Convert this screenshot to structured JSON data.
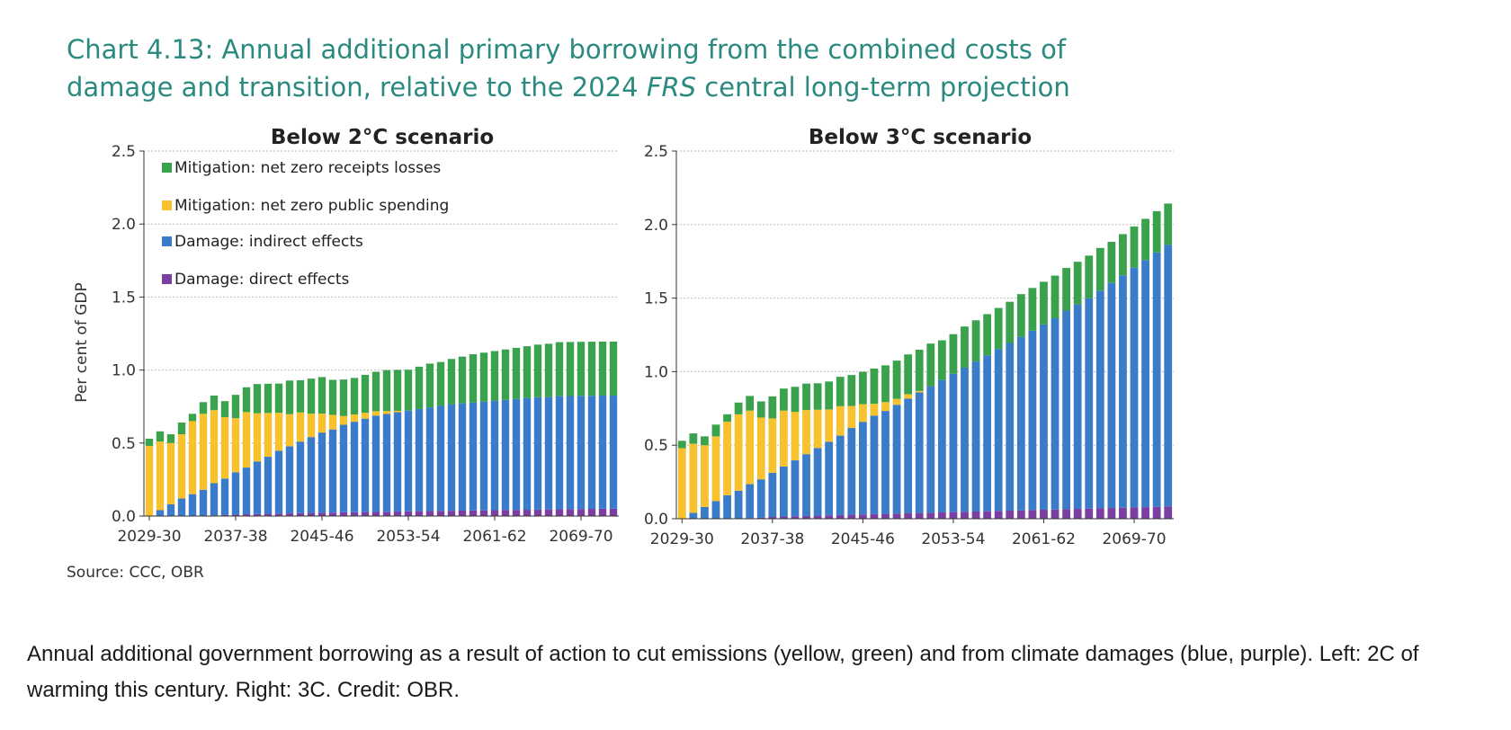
{
  "title": {
    "line1": "Chart 4.13: Annual additional primary borrowing from the combined costs of",
    "line2_before": "damage and transition, relative to the 2024 ",
    "line2_italic": "FRS",
    "line2_after": " central long-term projection"
  },
  "source": "Source: CCC, OBR",
  "caption": "Annual additional government borrowing as a result of action to cut emissions (yellow, green) and from climate damages (blue, purple). Left: 2C of warming this century. Right: 3C. Credit: OBR.",
  "colors": {
    "direct": "#7a3fa0",
    "indirect": "#3a7cc9",
    "spending": "#f7c12f",
    "receipts": "#3aa14c",
    "grid": "#bdbdbd",
    "axis": "#333333"
  },
  "chart_data": [
    {
      "type": "bar",
      "stacked": true,
      "title": "Below 2°C scenario",
      "ylabel": "Per cent of GDP",
      "ylim": [
        0,
        2.5
      ],
      "yticks": [
        "0.0",
        "0.5",
        "1.0",
        "1.5",
        "2.0",
        "2.5"
      ],
      "xticks": [
        "2029-30",
        "2037-38",
        "2045-46",
        "2053-54",
        "2061-62",
        "2069-70"
      ],
      "grid": true,
      "legend_position": "top-left",
      "categories": [
        "2029-30",
        "2030-31",
        "2031-32",
        "2032-33",
        "2033-34",
        "2034-35",
        "2035-36",
        "2036-37",
        "2037-38",
        "2038-39",
        "2039-40",
        "2040-41",
        "2041-42",
        "2042-43",
        "2043-44",
        "2044-45",
        "2045-46",
        "2046-47",
        "2047-48",
        "2048-49",
        "2049-50",
        "2050-51",
        "2051-52",
        "2052-53",
        "2053-54",
        "2054-55",
        "2055-56",
        "2056-57",
        "2057-58",
        "2058-59",
        "2059-60",
        "2060-61",
        "2061-62",
        "2062-63",
        "2063-64",
        "2064-65",
        "2065-66",
        "2066-67",
        "2067-68",
        "2068-69",
        "2069-70",
        "2070-71",
        "2071-72",
        "2072-73"
      ],
      "series": [
        {
          "name": "Damage: direct effects",
          "key": "direct",
          "values": [
            0.0,
            0.0,
            0.0,
            0.0,
            0.0,
            0.0,
            0.005,
            0.007,
            0.01,
            0.012,
            0.014,
            0.016,
            0.017,
            0.018,
            0.02,
            0.021,
            0.022,
            0.023,
            0.025,
            0.026,
            0.027,
            0.028,
            0.029,
            0.031,
            0.032,
            0.033,
            0.034,
            0.035,
            0.036,
            0.037,
            0.038,
            0.039,
            0.04,
            0.041,
            0.042,
            0.043,
            0.044,
            0.045,
            0.046,
            0.047,
            0.048,
            0.049,
            0.05,
            0.05
          ]
        },
        {
          "name": "Damage: indirect effects",
          "key": "indirect",
          "values": [
            0.0,
            0.04,
            0.08,
            0.12,
            0.15,
            0.18,
            0.22,
            0.25,
            0.29,
            0.32,
            0.36,
            0.39,
            0.43,
            0.46,
            0.49,
            0.52,
            0.55,
            0.57,
            0.6,
            0.62,
            0.64,
            0.66,
            0.67,
            0.68,
            0.69,
            0.7,
            0.71,
            0.72,
            0.73,
            0.735,
            0.74,
            0.745,
            0.75,
            0.755,
            0.76,
            0.765,
            0.77,
            0.77,
            0.775,
            0.775,
            0.775,
            0.775,
            0.775,
            0.775
          ]
        },
        {
          "name": "Mitigation: net zero public spending",
          "key": "spending",
          "values": [
            0.48,
            0.47,
            0.42,
            0.44,
            0.5,
            0.52,
            0.5,
            0.42,
            0.37,
            0.38,
            0.33,
            0.3,
            0.26,
            0.22,
            0.2,
            0.16,
            0.13,
            0.1,
            0.06,
            0.05,
            0.04,
            0.03,
            0.02,
            0.01,
            0.0,
            0.0,
            0.0,
            0.0,
            0.0,
            0.0,
            0.0,
            0.0,
            0.0,
            0.0,
            0.0,
            0.0,
            0.0,
            0.0,
            0.0,
            0.0,
            0.0,
            0.0,
            0.0,
            0.0
          ]
        },
        {
          "name": "Mitigation: net zero receipts losses",
          "key": "receipts",
          "values": [
            0.05,
            0.07,
            0.06,
            0.08,
            0.05,
            0.08,
            0.1,
            0.11,
            0.16,
            0.17,
            0.2,
            0.2,
            0.2,
            0.23,
            0.22,
            0.24,
            0.25,
            0.24,
            0.25,
            0.25,
            0.26,
            0.27,
            0.28,
            0.28,
            0.28,
            0.29,
            0.3,
            0.3,
            0.31,
            0.32,
            0.33,
            0.335,
            0.34,
            0.345,
            0.35,
            0.355,
            0.36,
            0.365,
            0.37,
            0.37,
            0.37,
            0.37,
            0.37,
            0.37
          ]
        }
      ]
    },
    {
      "type": "bar",
      "stacked": true,
      "title": "Below 3°C scenario",
      "ylabel": "",
      "ylim": [
        0,
        2.5
      ],
      "yticks": [
        "0.0",
        "0.5",
        "1.0",
        "1.5",
        "2.0",
        "2.5"
      ],
      "xticks": [
        "2029-30",
        "2037-38",
        "2045-46",
        "2053-54",
        "2061-62",
        "2069-70"
      ],
      "grid": true,
      "categories": [
        "2029-30",
        "2030-31",
        "2031-32",
        "2032-33",
        "2033-34",
        "2034-35",
        "2035-36",
        "2036-37",
        "2037-38",
        "2038-39",
        "2039-40",
        "2040-41",
        "2041-42",
        "2042-43",
        "2043-44",
        "2044-45",
        "2045-46",
        "2046-47",
        "2047-48",
        "2048-49",
        "2049-50",
        "2050-51",
        "2051-52",
        "2052-53",
        "2053-54",
        "2054-55",
        "2055-56",
        "2056-57",
        "2057-58",
        "2058-59",
        "2059-60",
        "2060-61",
        "2061-62",
        "2062-63",
        "2063-64",
        "2064-65",
        "2065-66",
        "2066-67",
        "2067-68",
        "2068-69",
        "2069-70",
        "2070-71",
        "2071-72",
        "2072-73"
      ],
      "series": [
        {
          "name": "Damage: direct effects",
          "key": "direct",
          "values": [
            0.0,
            0.0,
            0.0,
            0.0,
            0.0,
            0.0,
            0.005,
            0.008,
            0.012,
            0.015,
            0.017,
            0.019,
            0.021,
            0.023,
            0.025,
            0.027,
            0.029,
            0.031,
            0.033,
            0.035,
            0.037,
            0.039,
            0.041,
            0.043,
            0.045,
            0.047,
            0.049,
            0.051,
            0.053,
            0.055,
            0.057,
            0.059,
            0.061,
            0.063,
            0.065,
            0.067,
            0.069,
            0.071,
            0.073,
            0.075,
            0.077,
            0.079,
            0.081,
            0.083
          ]
        },
        {
          "name": "Damage: indirect effects",
          "key": "indirect",
          "values": [
            0.0,
            0.04,
            0.08,
            0.12,
            0.16,
            0.19,
            0.23,
            0.26,
            0.3,
            0.34,
            0.38,
            0.42,
            0.46,
            0.5,
            0.54,
            0.59,
            0.63,
            0.67,
            0.7,
            0.74,
            0.78,
            0.82,
            0.86,
            0.9,
            0.94,
            0.98,
            1.02,
            1.06,
            1.1,
            1.14,
            1.18,
            1.22,
            1.26,
            1.3,
            1.35,
            1.39,
            1.43,
            1.48,
            1.53,
            1.58,
            1.63,
            1.68,
            1.73,
            1.78
          ]
        },
        {
          "name": "Mitigation: net zero public spending",
          "key": "spending",
          "values": [
            0.48,
            0.47,
            0.42,
            0.44,
            0.5,
            0.52,
            0.5,
            0.42,
            0.37,
            0.38,
            0.33,
            0.3,
            0.26,
            0.22,
            0.2,
            0.15,
            0.12,
            0.08,
            0.06,
            0.04,
            0.03,
            0.01,
            0.0,
            0.0,
            0.0,
            0.0,
            0.0,
            0.0,
            0.0,
            0.0,
            0.0,
            0.0,
            0.0,
            0.0,
            0.0,
            0.0,
            0.0,
            0.0,
            0.0,
            0.0,
            0.0,
            0.0,
            0.0,
            0.0
          ]
        },
        {
          "name": "Mitigation: net zero receipts losses",
          "key": "receipts",
          "values": [
            0.05,
            0.07,
            0.06,
            0.08,
            0.05,
            0.08,
            0.1,
            0.11,
            0.15,
            0.15,
            0.17,
            0.18,
            0.18,
            0.19,
            0.2,
            0.21,
            0.22,
            0.24,
            0.25,
            0.26,
            0.27,
            0.28,
            0.29,
            0.27,
            0.27,
            0.28,
            0.28,
            0.28,
            0.28,
            0.28,
            0.29,
            0.29,
            0.29,
            0.29,
            0.29,
            0.29,
            0.29,
            0.29,
            0.28,
            0.28,
            0.28,
            0.28,
            0.28,
            0.28
          ]
        }
      ]
    }
  ]
}
